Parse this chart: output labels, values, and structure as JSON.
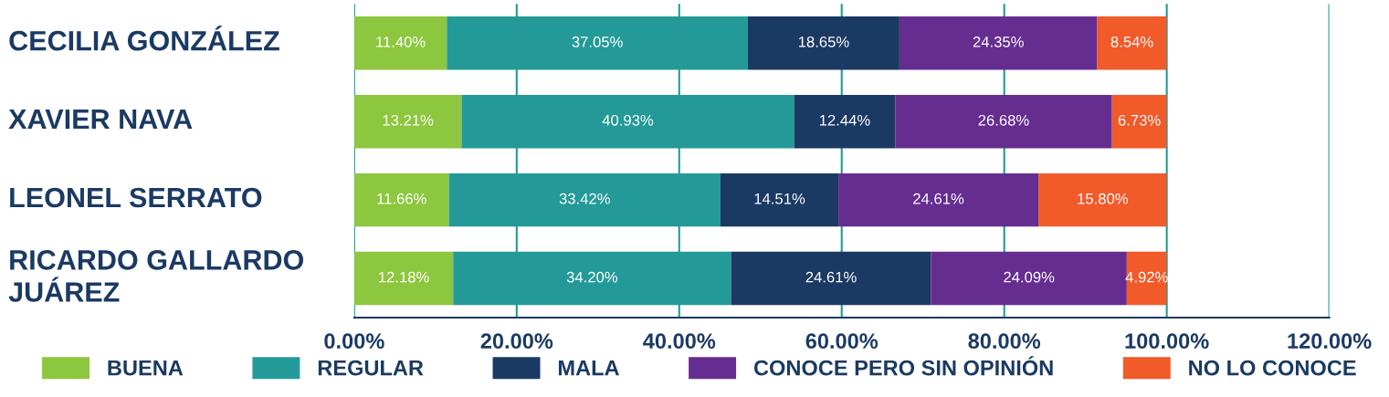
{
  "chart_data": {
    "type": "bar",
    "orientation": "horizontal",
    "stacked": true,
    "categories": [
      "CECILIA GONZÁLEZ",
      "XAVIER NAVA",
      "LEONEL SERRATO",
      "RICARDO GALLARDO\nJUÁREZ"
    ],
    "series": [
      {
        "name": "BUENA",
        "color": "#8dc63f",
        "values": [
          11.4,
          13.21,
          11.66,
          12.18
        ],
        "value_labels": [
          "11.40%",
          "13.21%",
          "11.66%",
          "12.18%"
        ]
      },
      {
        "name": "REGULAR",
        "color": "#239a97",
        "values": [
          37.05,
          40.93,
          33.42,
          34.2
        ],
        "value_labels": [
          "37.05%",
          "40.93%",
          "33.42%",
          "34.20%"
        ]
      },
      {
        "name": "MALA",
        "color": "#1b3a63",
        "values": [
          18.65,
          12.44,
          14.51,
          24.61
        ],
        "value_labels": [
          "18.65%",
          "12.44%",
          "14.51%",
          "24.61%"
        ]
      },
      {
        "name": "CONOCE PERO SIN OPINIÓN",
        "color": "#662d91",
        "values": [
          24.35,
          26.68,
          24.61,
          24.09
        ],
        "value_labels": [
          "24.35%",
          "26.68%",
          "24.61%",
          "24.09%"
        ]
      },
      {
        "name": "NO LO CONOCE",
        "color": "#f15a29",
        "values": [
          8.54,
          6.73,
          15.8,
          4.92
        ],
        "value_labels": [
          "8.54%",
          "6.73%",
          "15.80%",
          "4.92%"
        ]
      }
    ],
    "xlim": [
      0,
      120
    ],
    "xticks": [
      {
        "value": 0,
        "label": "0.00%"
      },
      {
        "value": 20,
        "label": "20.00%"
      },
      {
        "value": 40,
        "label": "40.00%"
      },
      {
        "value": 60,
        "label": "60.00%"
      },
      {
        "value": 80,
        "label": "80.00%"
      },
      {
        "value": 100,
        "label": "100.00%"
      },
      {
        "value": 120,
        "label": "120.00%"
      }
    ],
    "grid": "x",
    "legend": "bottom"
  }
}
